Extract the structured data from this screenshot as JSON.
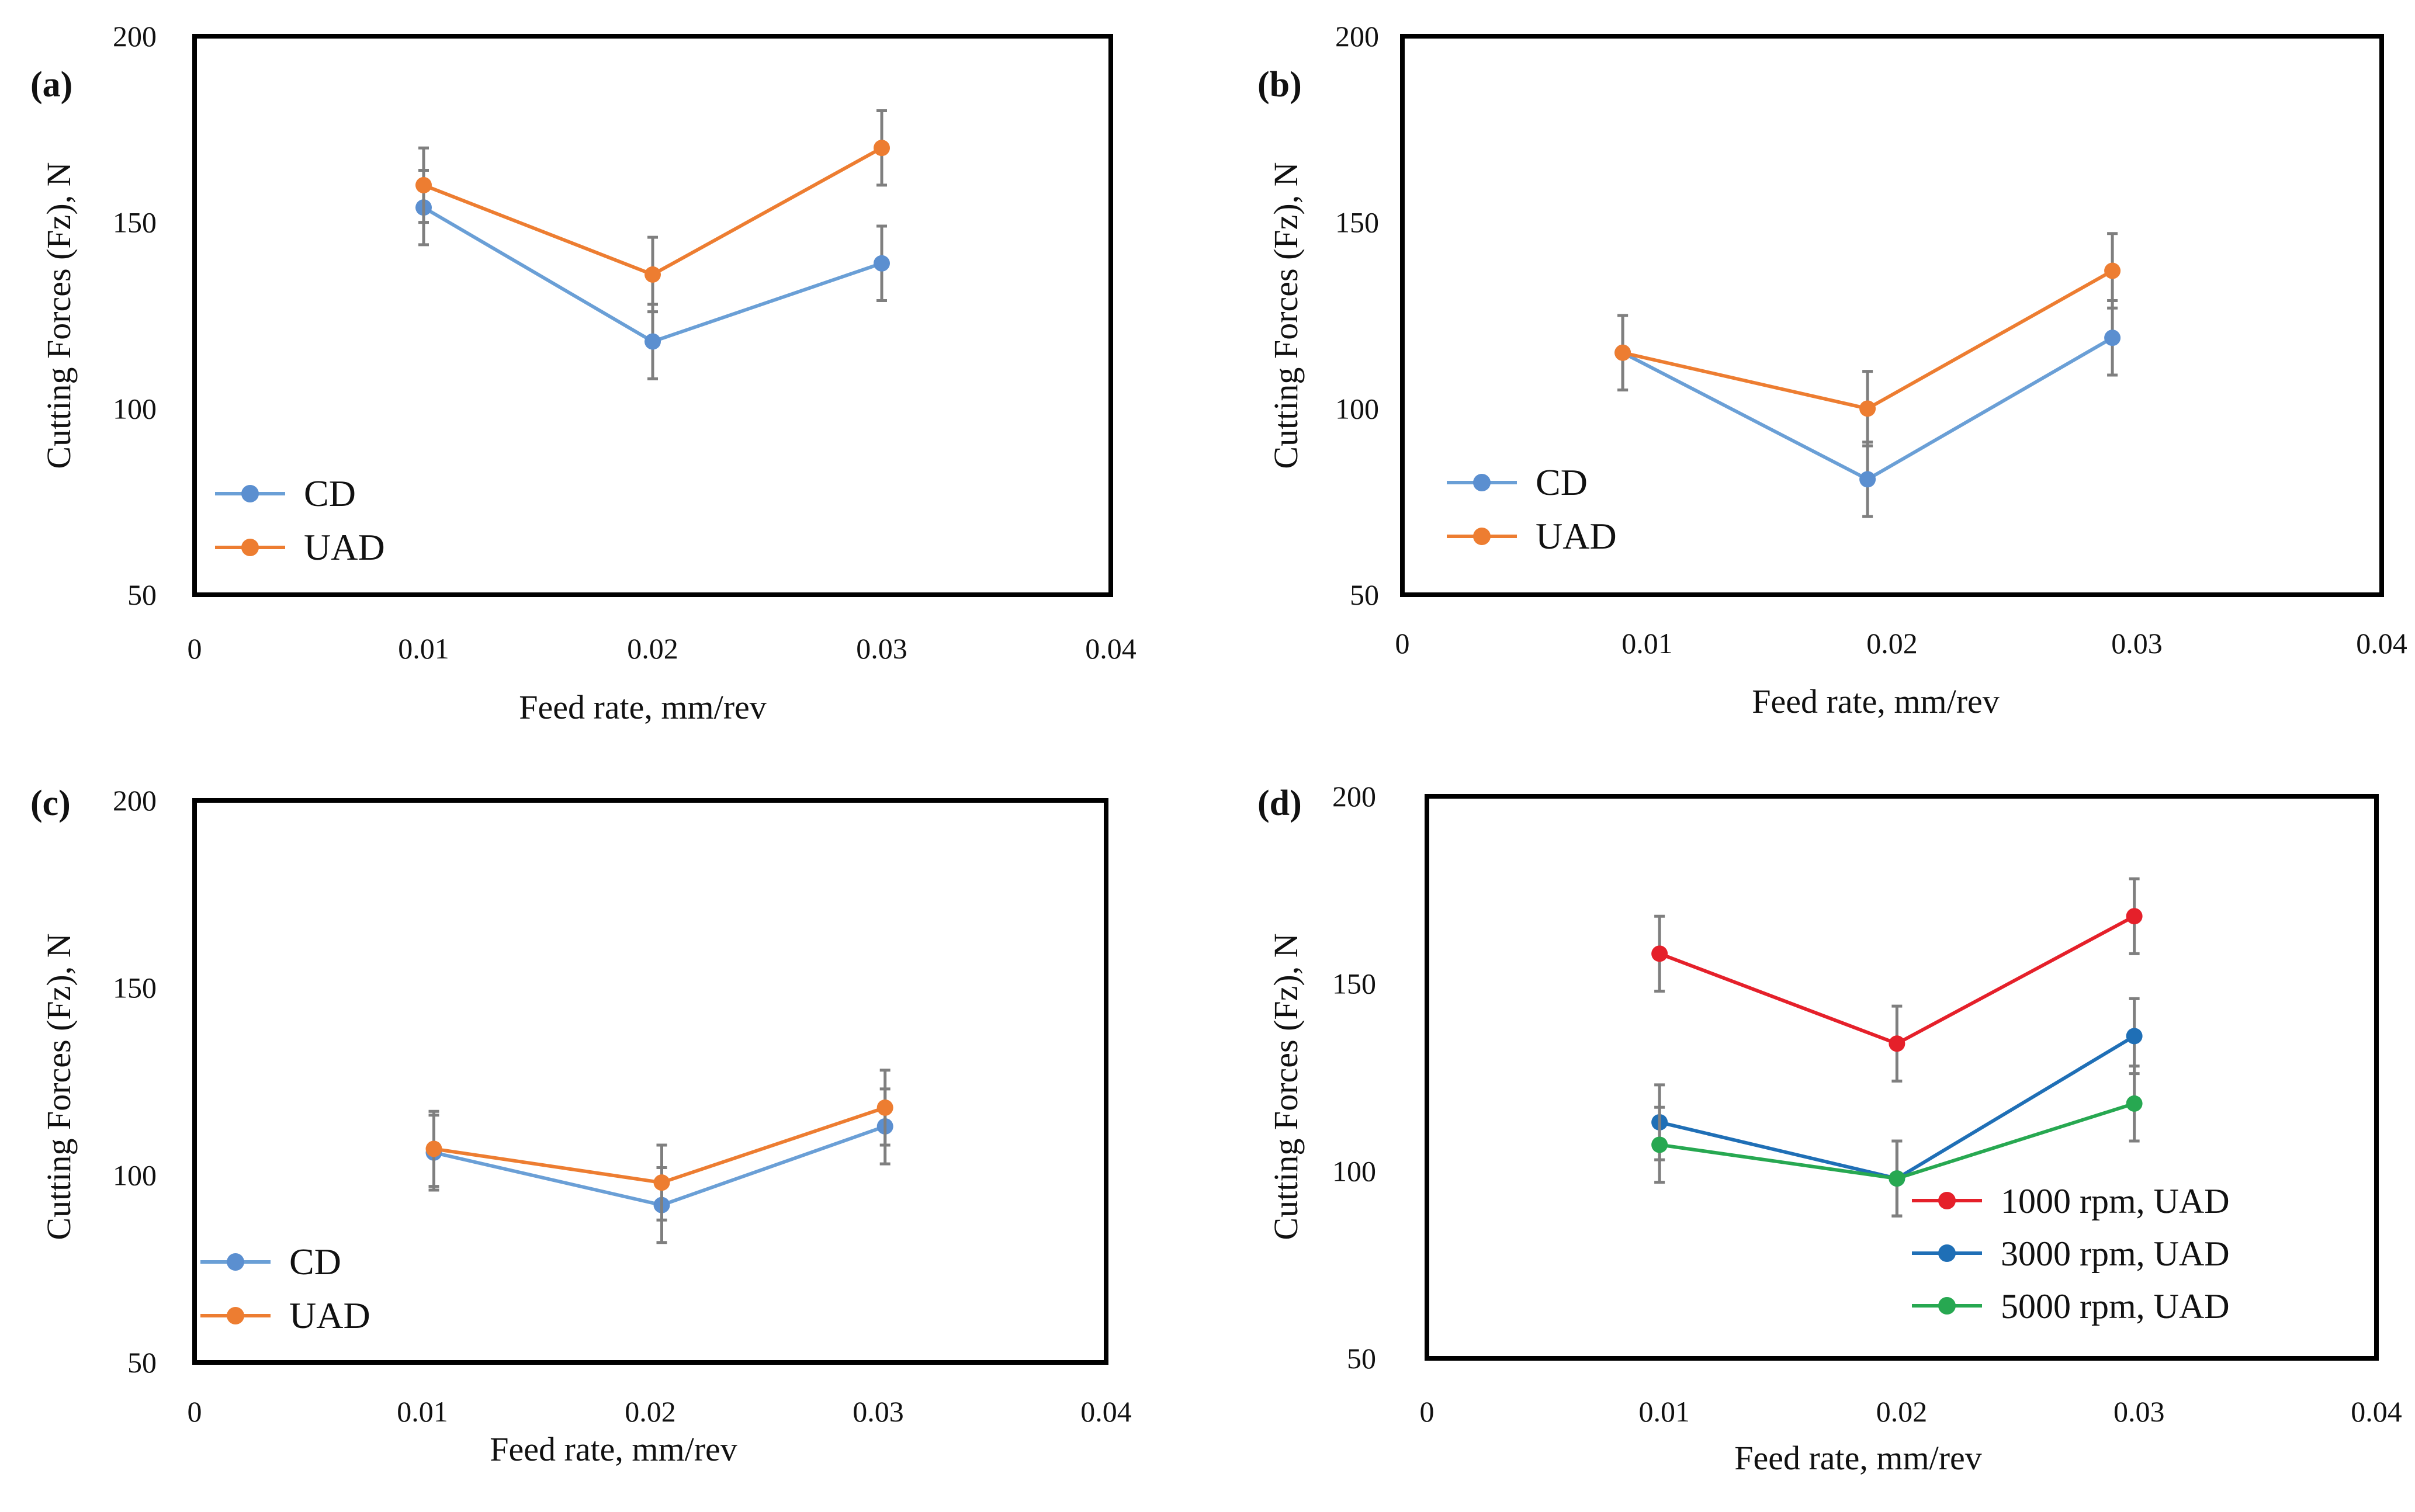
{
  "colors": {
    "frame": "#000000",
    "cd": "#6a9fd6",
    "cd_marker": "#5b8fd0",
    "uad": "#ed7d31",
    "r1000": "#e5202a",
    "r3000": "#1f6fb6",
    "r5000": "#27a851",
    "errorbar": "#7f7f7f"
  },
  "chart_data": [
    {
      "id": "a",
      "type": "line",
      "panel_label": "(a)",
      "xlabel": "Feed rate, mm/rev",
      "ylabel": "Cutting Forces (Fz), N",
      "xlim": [
        0,
        0.04
      ],
      "ylim": [
        50,
        200
      ],
      "x_ticks": [
        "0",
        "0.01",
        "0.02",
        "0.03",
        "0.04"
      ],
      "y_ticks": [
        "50",
        "100",
        "150",
        "200"
      ],
      "x": [
        0.01,
        0.02,
        0.03
      ],
      "legend": "lower-left",
      "series": [
        {
          "name": "CD",
          "color_key": "cd",
          "values": [
            154,
            118,
            139
          ],
          "error": [
            10,
            10,
            10
          ]
        },
        {
          "name": "UAD",
          "color_key": "uad",
          "values": [
            160,
            136,
            170
          ],
          "error": [
            10,
            10,
            10
          ]
        }
      ]
    },
    {
      "id": "b",
      "type": "line",
      "panel_label": "(b)",
      "xlabel": "Feed rate, mm/rev",
      "ylabel": "Cutting Forces (Fz), N",
      "xlim": [
        0,
        0.04
      ],
      "ylim": [
        50,
        200
      ],
      "x_ticks": [
        "0",
        "0.01",
        "0.02",
        "0.03",
        "0.04"
      ],
      "y_ticks": [
        "50",
        "100",
        "150",
        "200"
      ],
      "x": [
        0.009,
        0.019,
        0.029
      ],
      "legend": "lower-left",
      "series": [
        {
          "name": "CD",
          "color_key": "cd",
          "values": [
            115,
            81,
            119
          ],
          "error": [
            10,
            10,
            10
          ]
        },
        {
          "name": "UAD",
          "color_key": "uad",
          "values": [
            115,
            100,
            137
          ],
          "error": [
            10,
            10,
            10
          ]
        }
      ]
    },
    {
      "id": "c",
      "type": "line",
      "panel_label": "(c)",
      "xlabel": "Feed rate, mm/rev",
      "ylabel": "Cutting Forces (Fz), N",
      "xlim": [
        0,
        0.04
      ],
      "ylim": [
        50,
        200
      ],
      "x_ticks": [
        "0",
        "0.01",
        "0.02",
        "0.03",
        "0.04"
      ],
      "y_ticks": [
        "50",
        "100",
        "150",
        "200"
      ],
      "x": [
        0.0105,
        0.0205,
        0.0303
      ],
      "legend": "lower-left",
      "series": [
        {
          "name": "CD",
          "color_key": "cd",
          "values": [
            106,
            92,
            113
          ],
          "error": [
            10,
            10,
            10
          ]
        },
        {
          "name": "UAD",
          "color_key": "uad",
          "values": [
            107,
            98,
            118
          ],
          "error": [
            10,
            10,
            10
          ]
        }
      ]
    },
    {
      "id": "d",
      "type": "line",
      "panel_label": "(d)",
      "xlabel": "Feed rate, mm/rev",
      "ylabel": "Cutting Forces (Fz), N",
      "xlim": [
        0,
        0.04
      ],
      "ylim": [
        50,
        200
      ],
      "x_ticks": [
        "0",
        "0.01",
        "0.02",
        "0.03",
        "0.04"
      ],
      "y_ticks": [
        "50",
        "100",
        "150",
        "200"
      ],
      "x": [
        0.0098,
        0.0198,
        0.0298
      ],
      "legend": "lower-right",
      "series": [
        {
          "name": "1000 rpm, UAD",
          "color_key": "r1000",
          "values": [
            158,
            134,
            168
          ],
          "error": [
            10,
            10,
            10
          ]
        },
        {
          "name": "3000 rpm, UAD",
          "color_key": "r3000",
          "values": [
            113,
            98,
            136
          ],
          "error": [
            10,
            10,
            10
          ]
        },
        {
          "name": "5000 rpm, UAD",
          "color_key": "r5000",
          "values": [
            107,
            98,
            118
          ],
          "error": [
            10,
            10,
            10
          ]
        }
      ]
    }
  ]
}
